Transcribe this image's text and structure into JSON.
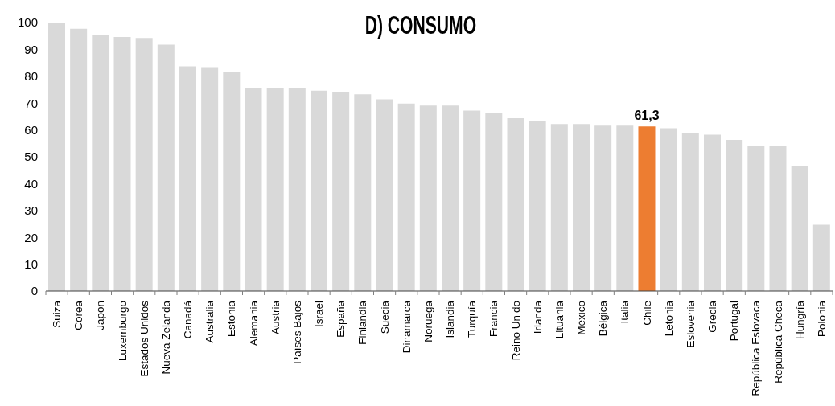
{
  "chart_data": {
    "type": "bar",
    "title": "D) CONSUMO",
    "categories": [
      "Suiza",
      "Corea",
      "Japón",
      "Luxemburgo",
      "Estados Unidos",
      "Nueva Zelanda",
      "Canadá",
      "Australia",
      "Estonia",
      "Alemania",
      "Austria",
      "Países Bajos",
      "Israel",
      "España",
      "Finlandia",
      "Suecia",
      "Dinamarca",
      "Noruega",
      "Islandia",
      "Turquía",
      "Francia",
      "Reino Unido",
      "Irlanda",
      "Lituania",
      "México",
      "Bélgica",
      "Italia",
      "Chile",
      "Letonia",
      "Eslovenia",
      "Grecia",
      "Portugal",
      "República Eslovaca",
      "República Checa",
      "Hungría",
      "Polonia"
    ],
    "values": [
      100,
      97.7,
      95.2,
      94.6,
      94.2,
      91.8,
      83.7,
      83.4,
      81.4,
      75.7,
      75.7,
      75.7,
      74.6,
      74.1,
      73.3,
      71.4,
      69.8,
      69.1,
      69.1,
      67.2,
      66.4,
      64.4,
      63.4,
      62.2,
      62.2,
      61.6,
      61.6,
      61.3,
      60.6,
      59.0,
      58.2,
      56.3,
      54.1,
      54.1,
      46.7,
      24.7
    ],
    "colors": [
      "#d9d9d9",
      "#d9d9d9",
      "#d9d9d9",
      "#d9d9d9",
      "#d9d9d9",
      "#d9d9d9",
      "#d9d9d9",
      "#d9d9d9",
      "#d9d9d9",
      "#d9d9d9",
      "#d9d9d9",
      "#d9d9d9",
      "#d9d9d9",
      "#d9d9d9",
      "#d9d9d9",
      "#d9d9d9",
      "#d9d9d9",
      "#d9d9d9",
      "#d9d9d9",
      "#d9d9d9",
      "#d9d9d9",
      "#d9d9d9",
      "#d9d9d9",
      "#d9d9d9",
      "#d9d9d9",
      "#d9d9d9",
      "#d9d9d9",
      "#ed7d31",
      "#d9d9d9",
      "#d9d9d9",
      "#d9d9d9",
      "#d9d9d9",
      "#d9d9d9",
      "#d9d9d9",
      "#d9d9d9",
      "#d9d9d9"
    ],
    "value_labels": [
      null,
      null,
      null,
      null,
      null,
      null,
      null,
      null,
      null,
      null,
      null,
      null,
      null,
      null,
      null,
      null,
      null,
      null,
      null,
      null,
      null,
      null,
      null,
      null,
      null,
      null,
      null,
      "61,3",
      null,
      null,
      null,
      null,
      null,
      null,
      null,
      null
    ],
    "ylim": [
      0,
      100
    ],
    "yticks": [
      0,
      10,
      20,
      30,
      40,
      50,
      60,
      70,
      80,
      90,
      100
    ]
  }
}
